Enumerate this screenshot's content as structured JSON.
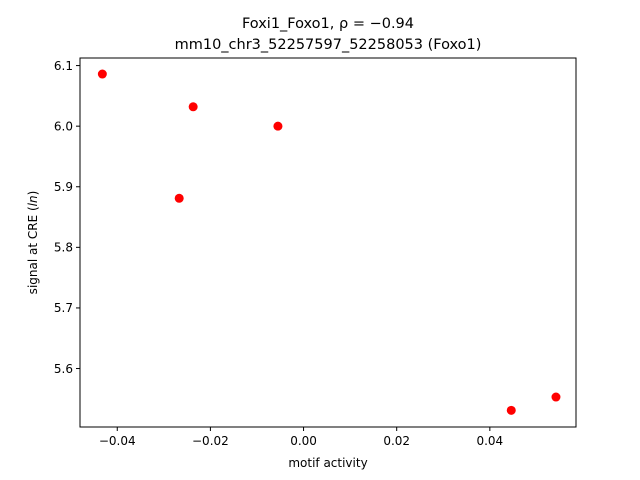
{
  "chart_data": {
    "type": "scatter",
    "title_line1": "Foxi1_Foxo1, ρ = −0.94",
    "title_line2": "mm10_chr3_52257597_52258053 (Foxo1)",
    "xlabel": "motif activity",
    "ylabel_prefix": "signal at CRE (",
    "ylabel_italic": "ln",
    "ylabel_suffix": ")",
    "xlim": [
      -0.048,
      0.0585
    ],
    "ylim": [
      5.5035,
      6.1125
    ],
    "xticks": [
      -0.04,
      -0.02,
      0.0,
      0.02,
      0.04
    ],
    "xtick_labels": [
      "−0.04",
      "−0.02",
      "0.00",
      "0.02",
      "0.04"
    ],
    "yticks": [
      5.6,
      5.7,
      5.8,
      5.9,
      6.0,
      6.1
    ],
    "ytick_labels": [
      "5.6",
      "5.7",
      "5.8",
      "5.9",
      "6.0",
      "6.1"
    ],
    "grid": false,
    "marker_color": "#ff0000",
    "points": [
      {
        "x": -0.0432,
        "y": 6.086
      },
      {
        "x": -0.0237,
        "y": 6.032
      },
      {
        "x": -0.0055,
        "y": 6.0
      },
      {
        "x": -0.0267,
        "y": 5.881
      },
      {
        "x": 0.0446,
        "y": 5.531
      },
      {
        "x": 0.0542,
        "y": 5.553
      }
    ]
  }
}
